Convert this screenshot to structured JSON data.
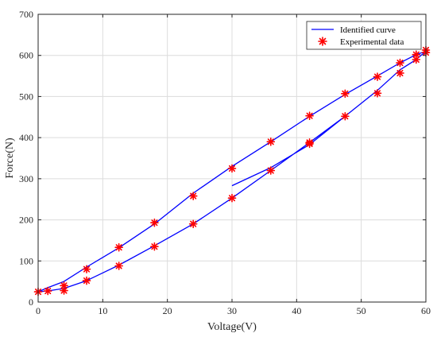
{
  "chart_data": {
    "type": "line",
    "xlabel": "Voltage(V)",
    "ylabel": "Force(N)",
    "xlim": [
      0,
      60
    ],
    "ylim": [
      0,
      700
    ],
    "xticks": [
      0,
      10,
      20,
      30,
      40,
      50,
      60
    ],
    "yticks": [
      0,
      100,
      200,
      300,
      400,
      500,
      600,
      700
    ],
    "grid": true,
    "legend_position": "top-right",
    "colors": {
      "curve": "#0000ff",
      "markers": "#ff0000"
    },
    "series": [
      {
        "name": "Identified curve",
        "style": "line",
        "x": [
          30,
          36,
          42,
          47.5,
          52.5,
          56,
          58.5,
          60,
          58.5,
          56,
          52.5,
          47.5,
          42,
          36,
          30,
          24,
          18,
          12.5,
          7.5,
          4,
          1.5,
          0,
          0,
          1.5,
          4,
          7.5,
          12.5,
          18,
          24,
          30,
          36,
          42,
          47.5,
          52.5,
          56,
          58.5,
          60
        ],
        "y": [
          283,
          327,
          383,
          452,
          515,
          565,
          590,
          610,
          602,
          582,
          550,
          505,
          452,
          390,
          330,
          265,
          190,
          132,
          85,
          50,
          35,
          25,
          25,
          27,
          33,
          52,
          90,
          137,
          190,
          253,
          320,
          388,
          452,
          515,
          565,
          590,
          610
        ]
      },
      {
        "name": "Experimental data",
        "style": "markers",
        "x": [
          0,
          1.5,
          4,
          4,
          7.5,
          7.5,
          12.5,
          12.5,
          18,
          18,
          24,
          24,
          30,
          30,
          36,
          36,
          42,
          42,
          42,
          47.5,
          47.5,
          52.5,
          52.5,
          56,
          56,
          58.5,
          58.5,
          60,
          60
        ],
        "y": [
          25,
          27,
          28,
          40,
          52,
          80,
          88,
          133,
          135,
          193,
          190,
          258,
          253,
          325,
          320,
          390,
          385,
          388,
          453,
          452,
          507,
          508,
          548,
          557,
          582,
          590,
          602,
          607,
          613
        ]
      }
    ]
  }
}
